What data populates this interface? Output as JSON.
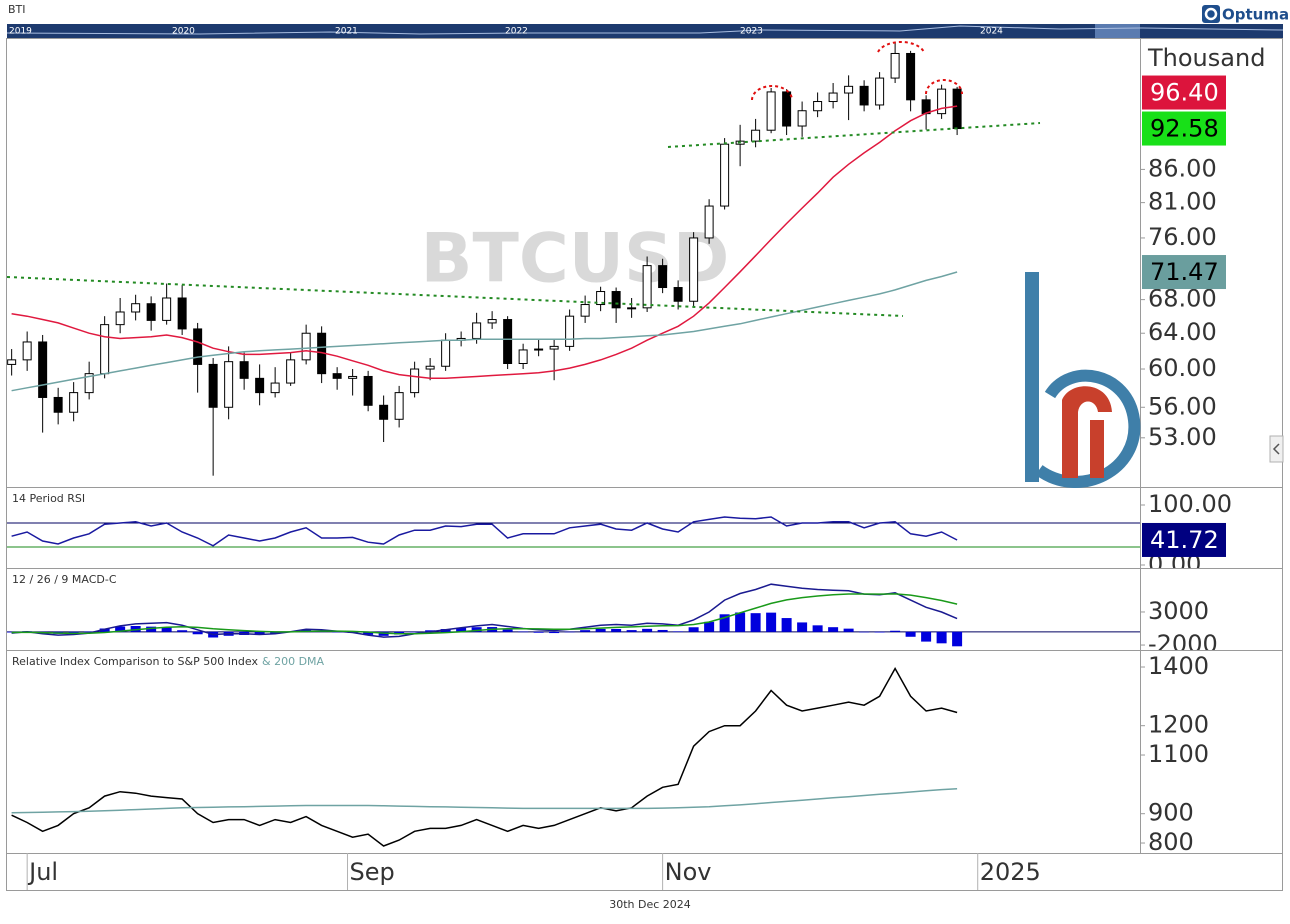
{
  "header": {
    "symbol": "BTI",
    "brand": "Optuma"
  },
  "navigator": {
    "labels": [
      "2019",
      "2020",
      "2021",
      "2022",
      "2023",
      "2024"
    ]
  },
  "chart_data": [
    {
      "type": "candlestick",
      "watermark": "BTCUSD",
      "y_label": "Thousand",
      "log_scale": true,
      "ylim": [
        48.5,
        109
      ],
      "yticks": [
        {
          "value": 53,
          "label": "53.00"
        },
        {
          "value": 56,
          "label": "56.00"
        },
        {
          "value": 60,
          "label": "60.00"
        },
        {
          "value": 64,
          "label": "64.00"
        },
        {
          "value": 68,
          "label": "68.00"
        },
        {
          "value": 76,
          "label": "76.00"
        },
        {
          "value": 81,
          "label": "81.00"
        },
        {
          "value": 86,
          "label": "86.00"
        }
      ],
      "open": [
        60.5,
        61.0,
        63.0,
        57.0,
        55.5,
        57.5,
        59.5,
        65.0,
        66.5,
        67.5,
        65.5,
        68.2,
        64.5,
        60.5,
        56.0,
        60.8,
        59.0,
        57.5,
        58.5,
        61.0,
        64.0,
        59.5,
        59.0,
        59.2,
        56.2,
        54.8,
        57.5,
        60.0,
        60.3,
        63.2,
        63.4,
        65.2,
        65.6,
        60.6,
        62.1,
        62.2,
        62.5,
        66.0,
        67.4,
        69.0,
        67.0,
        67.0,
        72.3,
        69.5,
        67.8,
        76.0,
        80.5,
        90.0,
        90.5,
        92.3,
        98.9,
        93.0,
        95.6,
        97.2,
        98.7,
        99.9,
        96.6,
        101.4,
        106.0,
        97.5,
        95.1,
        99.4
      ],
      "high": [
        62.2,
        64.2,
        63.8,
        58,
        58.6,
        60.8,
        66,
        68.2,
        68.6,
        68.4,
        70,
        69.8,
        65.2,
        61.2,
        62.5,
        61.8,
        60.5,
        60.2,
        61.8,
        65,
        64.8,
        60.2,
        60,
        59.8,
        57.2,
        58.2,
        60.8,
        61.2,
        64,
        64.2,
        66.4,
        66.6,
        66,
        62.8,
        63.3,
        63.3,
        66.8,
        68.5,
        69.6,
        69.5,
        68.2,
        73.5,
        73.2,
        70.4,
        76.8,
        81.5,
        91,
        93.2,
        94.2,
        99.6,
        99.4,
        97.2,
        98.8,
        100.5,
        101.9,
        101,
        102.5,
        108.2,
        106.5,
        98.3,
        100.2,
        99.8
      ],
      "low": [
        59.3,
        59.8,
        53.5,
        54.3,
        54.6,
        56.8,
        59,
        64,
        65.5,
        64.3,
        65,
        63.8,
        57.5,
        49.5,
        54.8,
        57.8,
        56.2,
        57,
        58.2,
        60.5,
        58.5,
        57.8,
        57.2,
        55.6,
        52.6,
        54,
        57,
        58.8,
        59.8,
        62.5,
        62.8,
        64.5,
        60,
        60,
        61.4,
        58.8,
        62,
        65.2,
        66.6,
        65.2,
        65.8,
        66.5,
        68.8,
        66.8,
        67.2,
        75.2,
        80,
        86.5,
        89.5,
        91.8,
        91.5,
        91.2,
        94.5,
        96,
        94,
        95.5,
        95.8,
        100.5,
        95.5,
        92.4,
        94.2,
        91.5
      ],
      "close": [
        61.0,
        63.0,
        57.0,
        55.5,
        57.5,
        59.5,
        65.0,
        66.5,
        67.5,
        65.5,
        68.2,
        64.5,
        60.5,
        56.0,
        60.8,
        59.0,
        57.5,
        58.5,
        61.0,
        64.0,
        59.5,
        59.0,
        59.2,
        56.2,
        54.8,
        57.5,
        60.0,
        60.3,
        63.2,
        63.4,
        65.2,
        65.6,
        60.6,
        62.1,
        62.2,
        62.5,
        66.0,
        67.4,
        69.0,
        67.0,
        67.0,
        72.3,
        69.5,
        67.8,
        76.0,
        80.5,
        90.0,
        90.5,
        92.3,
        98.9,
        93.0,
        95.6,
        97.2,
        98.7,
        99.9,
        96.6,
        101.4,
        106.0,
        97.5,
        95.1,
        99.4,
        92.58
      ],
      "up_color": "#ffffff",
      "down_color": "#000000",
      "close_box": {
        "label": "92.58",
        "color": "#18e018",
        "text_color": "#000000"
      },
      "series": [
        {
          "color": "#e0193f",
          "values": [
            66.3,
            66.0,
            65.6,
            65.2,
            64.6,
            64.0,
            63.6,
            63.4,
            63.5,
            63.6,
            63.8,
            63.5,
            63.0,
            62.3,
            61.9,
            61.6,
            61.6,
            61.7,
            61.8,
            62.0,
            61.8,
            61.4,
            60.9,
            60.4,
            59.8,
            59.4,
            59.2,
            59.0,
            59.0,
            59.1,
            59.2,
            59.3,
            59.4,
            59.5,
            59.6,
            59.8,
            60.1,
            60.5,
            61.0,
            61.6,
            62.3,
            63.2,
            64.0,
            64.8,
            66.0,
            67.6,
            69.5,
            71.5,
            73.6,
            75.8,
            78.0,
            80.2,
            82.4,
            84.8,
            86.8,
            88.6,
            90.3,
            92.2,
            93.9,
            95.2,
            96.0,
            96.4
          ],
          "box": {
            "label": "96.40",
            "color": "#dc143c",
            "text_color": "#ffffff"
          }
        },
        {
          "color": "#6fa3a3",
          "values": [
            57.7,
            58.0,
            58.3,
            58.6,
            58.9,
            59.2,
            59.5,
            59.8,
            60.1,
            60.4,
            60.7,
            61.0,
            61.3,
            61.5,
            61.7,
            61.9,
            62.0,
            62.1,
            62.2,
            62.3,
            62.4,
            62.5,
            62.6,
            62.7,
            62.8,
            62.9,
            63.0,
            63.1,
            63.2,
            63.2,
            63.3,
            63.3,
            63.3,
            63.3,
            63.3,
            63.3,
            63.3,
            63.4,
            63.4,
            63.5,
            63.6,
            63.7,
            63.8,
            64.0,
            64.2,
            64.5,
            64.8,
            65.1,
            65.5,
            65.9,
            66.3,
            66.7,
            67.1,
            67.5,
            67.9,
            68.3,
            68.7,
            69.2,
            69.8,
            70.4,
            70.9,
            71.47
          ],
          "box": {
            "label": "71.47",
            "color": "#6a9e9e",
            "text_color": "#000000"
          }
        }
      ]
    },
    {
      "type": "line",
      "title": "14 Period RSI",
      "ylim": [
        -5,
        130
      ],
      "yticks": [
        {
          "value": 0,
          "label": "0.00"
        },
        {
          "value": 100,
          "label": "100.00"
        }
      ],
      "levels": [
        {
          "value": 70,
          "color": "#000060"
        },
        {
          "value": 30,
          "color": "#1a8a1a"
        }
      ],
      "series": [
        {
          "color": "#1a1aa0",
          "values": [
            48,
            55,
            40,
            35,
            45,
            52,
            68,
            70,
            72,
            65,
            70,
            55,
            45,
            32,
            50,
            45,
            40,
            45,
            55,
            62,
            45,
            45,
            46,
            38,
            35,
            50,
            58,
            58,
            65,
            64,
            68,
            68,
            45,
            52,
            52,
            52,
            62,
            65,
            68,
            60,
            58,
            70,
            60,
            55,
            72,
            76,
            80,
            78,
            77,
            80,
            65,
            70,
            70,
            72,
            72,
            62,
            70,
            72,
            52,
            48,
            55,
            41.72
          ],
          "box": {
            "label": "41.72",
            "color": "#000080",
            "text_color": "#ffffff"
          }
        }
      ]
    },
    {
      "type": "macd",
      "title": "12 / 26 / 9 MACD-C",
      "ylim": [
        -2750,
        9650
      ],
      "yticks": [
        -2000,
        3000
      ],
      "zero_line": true,
      "histogram": {
        "color": "#0000dd",
        "values": [
          -100,
          80,
          -180,
          -300,
          -160,
          30,
          500,
          800,
          880,
          780,
          700,
          240,
          -370,
          -860,
          -600,
          -480,
          -460,
          -280,
          20,
          340,
          190,
          -10,
          -170,
          -460,
          -610,
          -410,
          -10,
          230,
          420,
          580,
          700,
          720,
          340,
          30,
          -140,
          -190,
          10,
          250,
          440,
          430,
          260,
          450,
          280,
          60,
          690,
          1510,
          2650,
          2920,
          2820,
          2900,
          2080,
          1420,
          980,
          700,
          480,
          -20,
          -100,
          160,
          -750,
          -1480,
          -1740,
          -2190
        ]
      },
      "series": [
        {
          "color": "#1a1a90",
          "values": [
            -200,
            0,
            -300,
            -500,
            -400,
            -200,
            400,
            900,
            1200,
            1300,
            1400,
            1000,
            300,
            -400,
            -300,
            -300,
            -400,
            -300,
            0,
            400,
            300,
            100,
            -100,
            -500,
            -800,
            -700,
            -300,
            0,
            300,
            600,
            900,
            1100,
            800,
            500,
            300,
            200,
            400,
            700,
            1000,
            1100,
            1000,
            1300,
            1200,
            1000,
            1800,
            3000,
            4800,
            5800,
            6400,
            7200,
            6900,
            6600,
            6400,
            6300,
            6200,
            5700,
            5600,
            5900,
            4800,
            3700,
            3000,
            2000
          ]
        },
        {
          "color": "#1a9a1a",
          "values": [
            -100,
            -80,
            -120,
            -200,
            -240,
            -230,
            -100,
            100,
            320,
            520,
            700,
            760,
            670,
            460,
            300,
            180,
            60,
            -20,
            -20,
            60,
            110,
            110,
            70,
            -40,
            -190,
            -290,
            -290,
            -230,
            -120,
            20,
            200,
            380,
            460,
            470,
            440,
            390,
            390,
            450,
            560,
            670,
            740,
            850,
            920,
            940,
            1110,
            1490,
            2150,
            2880,
            3580,
            4300,
            4820,
            5180,
            5420,
            5600,
            5720,
            5720,
            5700,
            5740,
            5550,
            5180,
            4740,
            4190
          ]
        }
      ]
    },
    {
      "type": "line",
      "ylim": [
        766,
        1458
      ],
      "yticks": [
        800,
        900,
        1100,
        1200,
        1400
      ],
      "xlim": [
        -0.3,
        72.8
      ],
      "xticks": [
        {
          "value": 1,
          "label": "Jul"
        },
        {
          "value": 21.67,
          "label": "Sep"
        },
        {
          "value": 42,
          "label": "Nov"
        },
        {
          "value": 62.33,
          "label": "2025"
        }
      ],
      "series": [
        {
          "name": "Relative Index Comparison to S&P 500 Index",
          "color": "#000000",
          "values": [
            895,
            870,
            840,
            860,
            900,
            920,
            960,
            975,
            970,
            960,
            955,
            950,
            900,
            870,
            880,
            880,
            860,
            880,
            870,
            890,
            860,
            840,
            820,
            830,
            790,
            810,
            840,
            850,
            850,
            860,
            880,
            860,
            840,
            860,
            850,
            860,
            880,
            900,
            920,
            910,
            920,
            960,
            990,
            1000,
            1130,
            1180,
            1200,
            1200,
            1250,
            1320,
            1270,
            1250,
            1260,
            1270,
            1280,
            1270,
            1300,
            1395,
            1300,
            1250,
            1260,
            1245
          ]
        },
        {
          "name": "& 200 DMA",
          "color": "#6fa3a3",
          "values": [
            903,
            904,
            905,
            906,
            907,
            908,
            910,
            912,
            914,
            916,
            918,
            920,
            921,
            922,
            923,
            924,
            925,
            926,
            927,
            928,
            928,
            928,
            928,
            928,
            927,
            926,
            925,
            924,
            923,
            922,
            921,
            920,
            919,
            918,
            918,
            918,
            918,
            918,
            918,
            918,
            918,
            918,
            919,
            920,
            922,
            924,
            927,
            930,
            934,
            938,
            942,
            946,
            950,
            954,
            958,
            962,
            966,
            970,
            974,
            978,
            982,
            985
          ]
        }
      ]
    }
  ],
  "footer": {
    "date": "30th Dec 2024"
  }
}
